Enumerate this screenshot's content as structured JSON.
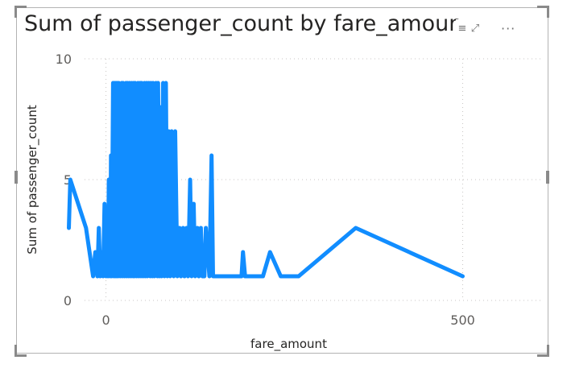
{
  "visual": {
    "title": "Sum of passenger_count by fare_amount",
    "header_icons": {
      "filter": "filter-icon",
      "focus": "focus-mode-icon",
      "more": "more-options-icon"
    },
    "more_glyph": "···",
    "filter_glyph": "≡",
    "focus_glyph": "⤢"
  },
  "chart_data": {
    "type": "line",
    "xlabel": "fare_amount",
    "ylabel": "Sum of passenger_count",
    "xlim": [
      -30,
      610
    ],
    "ylim": [
      0,
      10
    ],
    "x_ticks": [
      0,
      500
    ],
    "y_ticks": [
      0,
      5,
      10
    ],
    "grid": true,
    "line_color": "#118dff",
    "series": [
      {
        "x": [
          -52,
          -50,
          -28,
          -18,
          -15,
          -12,
          -10,
          -8,
          -6,
          -4,
          -2,
          0,
          1,
          3,
          4,
          6,
          7,
          8,
          10,
          11,
          12,
          13,
          14,
          15,
          16,
          17,
          18,
          20,
          22,
          23,
          24,
          26,
          28,
          29,
          30,
          32,
          33,
          35,
          36,
          38,
          39,
          40,
          41,
          43,
          45,
          46,
          48,
          49,
          50,
          52,
          54,
          55,
          57,
          58,
          60,
          62,
          63,
          65,
          66,
          68,
          70,
          72,
          73,
          75,
          76,
          78,
          80,
          82,
          84,
          86,
          88,
          90,
          92,
          95,
          97,
          100,
          103,
          105,
          108,
          110,
          113,
          115,
          118,
          120,
          123,
          125,
          128,
          130,
          133,
          135,
          138,
          140,
          145,
          148,
          150,
          153,
          155,
          160,
          170,
          175,
          180,
          190,
          192,
          195,
          200,
          215,
          220,
          230,
          245,
          255,
          270,
          350,
          500
        ],
        "y": [
          3,
          5,
          3,
          1,
          2,
          1,
          3,
          1,
          2,
          1,
          4,
          1,
          3,
          1,
          5,
          1,
          6,
          1,
          9,
          1,
          9,
          1,
          9,
          1,
          9,
          1,
          9,
          1,
          9,
          1,
          9,
          1,
          9,
          1,
          9,
          1,
          9,
          1,
          9,
          1,
          9,
          1,
          9,
          1,
          9,
          1,
          9,
          1,
          9,
          1,
          9,
          1,
          9,
          1,
          9,
          1,
          9,
          1,
          9,
          1,
          9,
          1,
          9,
          1,
          8,
          1,
          9,
          1,
          9,
          1,
          7,
          1,
          7,
          1,
          7,
          1,
          3,
          1,
          3,
          1,
          3,
          1,
          5,
          1,
          4,
          1,
          3,
          1,
          3,
          1,
          1,
          3,
          1,
          6,
          1,
          1,
          1,
          1,
          1,
          1,
          1,
          1,
          2,
          1,
          1,
          1,
          1,
          2,
          1,
          1,
          1,
          3,
          1
        ]
      }
    ]
  }
}
